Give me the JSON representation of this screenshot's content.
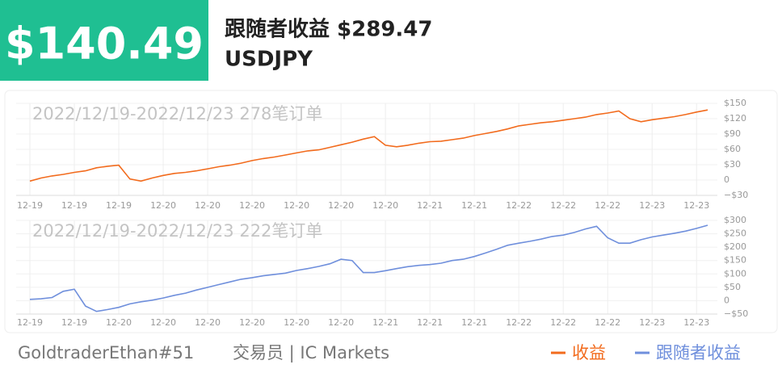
{
  "header": {
    "amount": "$140.49",
    "title": "跟随者收益 $289.47",
    "symbol": "USDJPY"
  },
  "chart_data": [
    {
      "type": "line",
      "subtitle": "2022/12/19-2022/12/23 278笔订单",
      "categories": [
        "12-19",
        null,
        null,
        null,
        "12-19",
        null,
        null,
        null,
        "12-19",
        null,
        null,
        null,
        "12-20",
        null,
        null,
        null,
        "12-20",
        null,
        null,
        null,
        "12-20",
        null,
        null,
        null,
        "12-20",
        null,
        null,
        null,
        "12-20",
        null,
        null,
        null,
        "12-20",
        null,
        null,
        null,
        "12-21",
        null,
        null,
        null,
        "12-21",
        null,
        null,
        null,
        "12-22",
        null,
        null,
        null,
        "12-22",
        null,
        null,
        null,
        "12-22",
        null,
        null,
        null,
        "12-23",
        null,
        null,
        null,
        "12-23",
        null
      ],
      "series": [
        {
          "name": "收益",
          "color": "#f26b1d",
          "values": [
            -2,
            4,
            8,
            11,
            15,
            18,
            24,
            27,
            29,
            2,
            -2,
            4,
            9,
            13,
            15,
            18,
            22,
            26,
            29,
            33,
            38,
            42,
            45,
            49,
            53,
            57,
            59,
            64,
            69,
            74,
            80,
            85,
            68,
            65,
            68,
            72,
            75,
            76,
            79,
            82,
            87,
            91,
            95,
            100,
            106,
            109,
            112,
            114,
            117,
            120,
            123,
            128,
            131,
            135,
            120,
            114,
            118,
            121,
            124,
            128,
            133,
            137
          ]
        }
      ],
      "ylim": [
        -30,
        150
      ],
      "yticks": [
        {
          "value": -30,
          "label": "−$30"
        },
        0,
        {
          "value": 30,
          "label": "$30"
        },
        {
          "value": 60,
          "label": "$60"
        },
        {
          "value": 90,
          "label": "$90"
        },
        {
          "value": 120,
          "label": "$120"
        },
        {
          "value": 150,
          "label": "$150"
        }
      ],
      "grid": true
    },
    {
      "type": "line",
      "subtitle": "2022/12/19-2022/12/23 222笔订单",
      "categories": [
        "12-19",
        null,
        null,
        null,
        "12-19",
        null,
        null,
        null,
        "12-20",
        null,
        null,
        null,
        "12-20",
        null,
        null,
        null,
        "12-20",
        null,
        null,
        null,
        "12-20",
        null,
        null,
        null,
        "12-20",
        null,
        null,
        null,
        "12-20",
        null,
        null,
        null,
        "12-21",
        null,
        null,
        null,
        "12-21",
        null,
        null,
        null,
        "12-21",
        null,
        null,
        null,
        "12-22",
        null,
        null,
        null,
        "12-22",
        null,
        null,
        null,
        "12-22",
        null,
        null,
        null,
        "12-23",
        null,
        null,
        null,
        "12-23",
        null
      ],
      "series": [
        {
          "name": "跟随者收益",
          "color": "#6f8fdc",
          "values": [
            5,
            7,
            12,
            35,
            43,
            -20,
            -40,
            -33,
            -25,
            -12,
            -4,
            2,
            10,
            20,
            28,
            40,
            50,
            60,
            70,
            80,
            86,
            93,
            98,
            103,
            113,
            120,
            128,
            138,
            155,
            150,
            105,
            105,
            112,
            120,
            127,
            132,
            135,
            140,
            150,
            155,
            165,
            178,
            192,
            207,
            215,
            222,
            230,
            240,
            245,
            255,
            268,
            278,
            235,
            215,
            215,
            228,
            238,
            245,
            252,
            260,
            270,
            282
          ]
        }
      ],
      "ylim": [
        -50,
        300
      ],
      "yticks": [
        {
          "value": -50,
          "label": "−$50"
        },
        0,
        {
          "value": 50,
          "label": "$50"
        },
        {
          "value": 100,
          "label": "$100"
        },
        {
          "value": 150,
          "label": "$150"
        },
        {
          "value": 200,
          "label": "$200"
        },
        {
          "value": 250,
          "label": "$250"
        },
        {
          "value": 300,
          "label": "$300"
        }
      ],
      "grid": true
    }
  ],
  "footer": {
    "account": "GoldtraderEthan#51",
    "broker": "交易员 | IC Markets"
  }
}
